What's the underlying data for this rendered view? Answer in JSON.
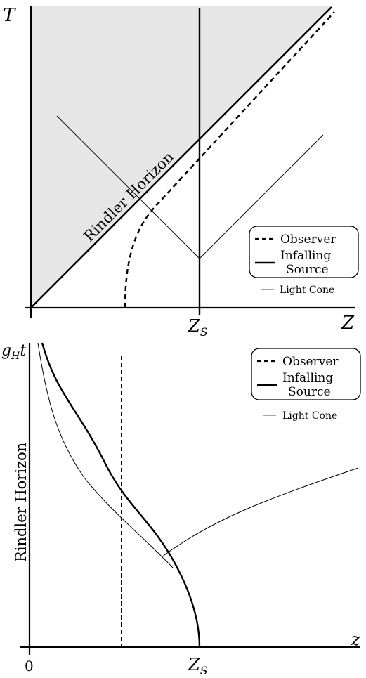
{
  "top_panel": {
    "axis_t_label": "T",
    "axis_z_label": "Z",
    "zs_label_main": "Z",
    "zs_label_sub": "S",
    "horizon_label": "Rindler Horizon",
    "legend": {
      "observer": "Observer",
      "source_line1": "Infalling",
      "source_line2": "Source",
      "light_cone": "Light Cone"
    }
  },
  "bottom_panel": {
    "axis_t_label_main": "g",
    "axis_t_label_sub": "H",
    "axis_t_label_tail": "t",
    "axis_z_label": "z",
    "origin_label": "0",
    "zs_label_main": "Z",
    "zs_label_sub": "S",
    "horizon_label": "Rindler Horizon",
    "legend": {
      "observer": "Observer",
      "source_line1": "Infalling",
      "source_line2": "Source",
      "light_cone": "Light Cone"
    }
  },
  "colors": {
    "shade": "#e6e6e6",
    "line": "#000000",
    "light_cone_legend": "#888888"
  }
}
